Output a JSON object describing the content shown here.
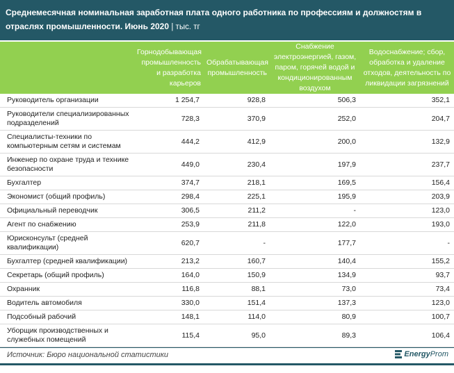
{
  "title": "Среднемесячная номинальная заработная плата одного работника по профессиям и должностям в отраслях промышленности. Июнь 2020",
  "unit": "| тыс. тг",
  "columns": [
    "",
    "Горнодобывающая промышленность и разработка карьеров",
    "Обрабатывающая промышленность",
    "Снабжение электроэнергией, газом, паром, горячей водой и кондиционированным воздухом",
    "Водоснабжение; сбор, обработка и удаление отходов, деятельность по ликвидации загрязнений"
  ],
  "rows": [
    [
      "Руководитель организации",
      "1 254,7",
      "928,8",
      "506,3",
      "352,1"
    ],
    [
      "Руководители специализированных подразделений",
      "728,3",
      "370,9",
      "252,0",
      "204,7"
    ],
    [
      "Специалисты-техники по компьютерным сетям и системам",
      "444,2",
      "412,9",
      "200,0",
      "132,9"
    ],
    [
      "Инженер по охране труда и технике безопасности",
      "449,0",
      "230,4",
      "197,9",
      "237,7"
    ],
    [
      "Бухгалтер",
      "374,7",
      "218,1",
      "169,5",
      "156,4"
    ],
    [
      "Экономист (общий профиль)",
      "298,4",
      "225,1",
      "195,9",
      "203,9"
    ],
    [
      "Официальный переводчик",
      "306,5",
      "211,2",
      "-",
      "123,0"
    ],
    [
      "Агент по снабжению",
      "253,9",
      "211,8",
      "122,0",
      "193,0"
    ],
    [
      "Юрисконсульт (средней квалификации)",
      "620,7",
      "-",
      "177,7",
      "-"
    ],
    [
      "Бухгалтер  (средней квалификации)",
      "213,2",
      "160,7",
      "140,4",
      "155,2"
    ],
    [
      "Секретарь (общий профиль)",
      "164,0",
      "150,9",
      "134,9",
      "93,7"
    ],
    [
      "Охранник",
      "116,8",
      "88,1",
      "73,0",
      "73,4"
    ],
    [
      "Водитель автомобиля",
      "330,0",
      "151,4",
      "137,3",
      "123,0"
    ],
    [
      "Подсобный рабочий",
      "148,1",
      "114,0",
      "80,9",
      "100,7"
    ],
    [
      "Уборщик производственных и служебных помещений",
      "115,4",
      "95,0",
      "89,3",
      "106,4"
    ]
  ],
  "source": "Источник: Бюро национальной статистики",
  "logo": {
    "a": "Energy",
    "b": "Prom"
  }
}
